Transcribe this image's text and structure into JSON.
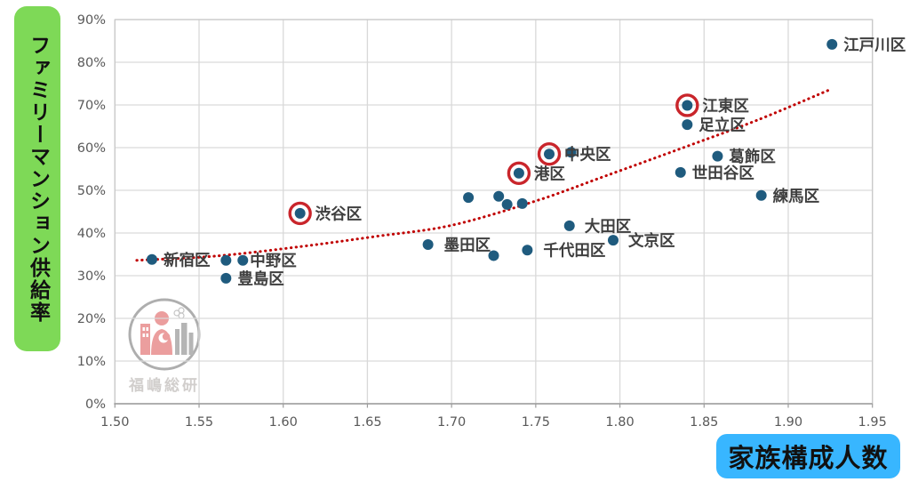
{
  "watermark": {
    "text": "福嶋総研"
  },
  "colors": {
    "point": "#1f5b7e",
    "highlight_ring": "#c9252b",
    "trend": "#c00000",
    "grid": "#d9d9d9",
    "border": "#c9c9c9",
    "axis": "#9c9c9c",
    "tick_text": "#595959",
    "point_label": "#3f3f3f",
    "y_label_bg": "#7ed957",
    "x_label_bg": "#38b6ff"
  },
  "chart_data": {
    "type": "scatter",
    "title": "",
    "xlabel": "家族構成人数",
    "ylabel": "ファミリーマンション供給率",
    "xlim": [
      1.5,
      1.95
    ],
    "ylim": [
      0,
      90
    ],
    "grid": true,
    "x_tick_labels": [
      "1.50",
      "1.55",
      "1.60",
      "1.65",
      "1.70",
      "1.75",
      "1.80",
      "1.85",
      "1.90",
      "1.95"
    ],
    "y_tick_labels": [
      "0%",
      "10%",
      "20%",
      "30%",
      "40%",
      "50%",
      "60%",
      "70%",
      "80%",
      "90%"
    ],
    "points": [
      {
        "label": "新宿区",
        "x": 1.522,
        "y": 33.8,
        "circled": false
      },
      {
        "label": "",
        "x": 1.566,
        "y": 33.6,
        "circled": false
      },
      {
        "label": "中野区",
        "x": 1.576,
        "y": 33.6,
        "circled": false,
        "ldx": 8
      },
      {
        "label": "豊島区",
        "x": 1.566,
        "y": 29.4,
        "circled": false
      },
      {
        "label": "渋谷区",
        "x": 1.61,
        "y": 44.6,
        "circled": true
      },
      {
        "label": "墨田区",
        "x": 1.686,
        "y": 37.3,
        "circled": false,
        "ldx": 18
      },
      {
        "label": "",
        "x": 1.71,
        "y": 48.3,
        "circled": false
      },
      {
        "label": "",
        "x": 1.728,
        "y": 48.6,
        "circled": false
      },
      {
        "label": "",
        "x": 1.733,
        "y": 46.7,
        "circled": false
      },
      {
        "label": "",
        "x": 1.742,
        "y": 46.9,
        "circled": false
      },
      {
        "label": "港区",
        "x": 1.74,
        "y": 54.0,
        "circled": true
      },
      {
        "label": "中央区",
        "x": 1.758,
        "y": 58.5,
        "circled": true
      },
      {
        "label": "",
        "x": 1.771,
        "y": 58.9,
        "circled": false
      },
      {
        "label": "",
        "x": 1.725,
        "y": 34.7,
        "circled": false
      },
      {
        "label": "千代田区",
        "x": 1.745,
        "y": 36.0,
        "circled": false,
        "ldx": 18
      },
      {
        "label": "大田区",
        "x": 1.77,
        "y": 41.7,
        "circled": false,
        "ldx": 17
      },
      {
        "label": "文京区",
        "x": 1.796,
        "y": 38.3,
        "circled": false,
        "ldx": 17
      },
      {
        "label": "江東区",
        "x": 1.84,
        "y": 69.9,
        "circled": true
      },
      {
        "label": "足立区",
        "x": 1.84,
        "y": 65.4,
        "circled": false
      },
      {
        "label": "葛飾区",
        "x": 1.858,
        "y": 58.0,
        "circled": false
      },
      {
        "label": "世田谷区",
        "x": 1.836,
        "y": 54.2,
        "circled": false
      },
      {
        "label": "練馬区",
        "x": 1.884,
        "y": 48.8,
        "circled": false
      },
      {
        "label": "江戸川区",
        "x": 1.926,
        "y": 84.2,
        "circled": false
      }
    ],
    "trend_line": {
      "style": "dotted",
      "points": [
        [
          1.513,
          33.6
        ],
        [
          1.56,
          34.6
        ],
        [
          1.61,
          36.8
        ],
        [
          1.655,
          39.2
        ],
        [
          1.7,
          41.8
        ],
        [
          1.75,
          47.5
        ],
        [
          1.791,
          53.3
        ],
        [
          1.837,
          59.9
        ],
        [
          1.882,
          66.5
        ],
        [
          1.926,
          73.8
        ]
      ]
    }
  }
}
